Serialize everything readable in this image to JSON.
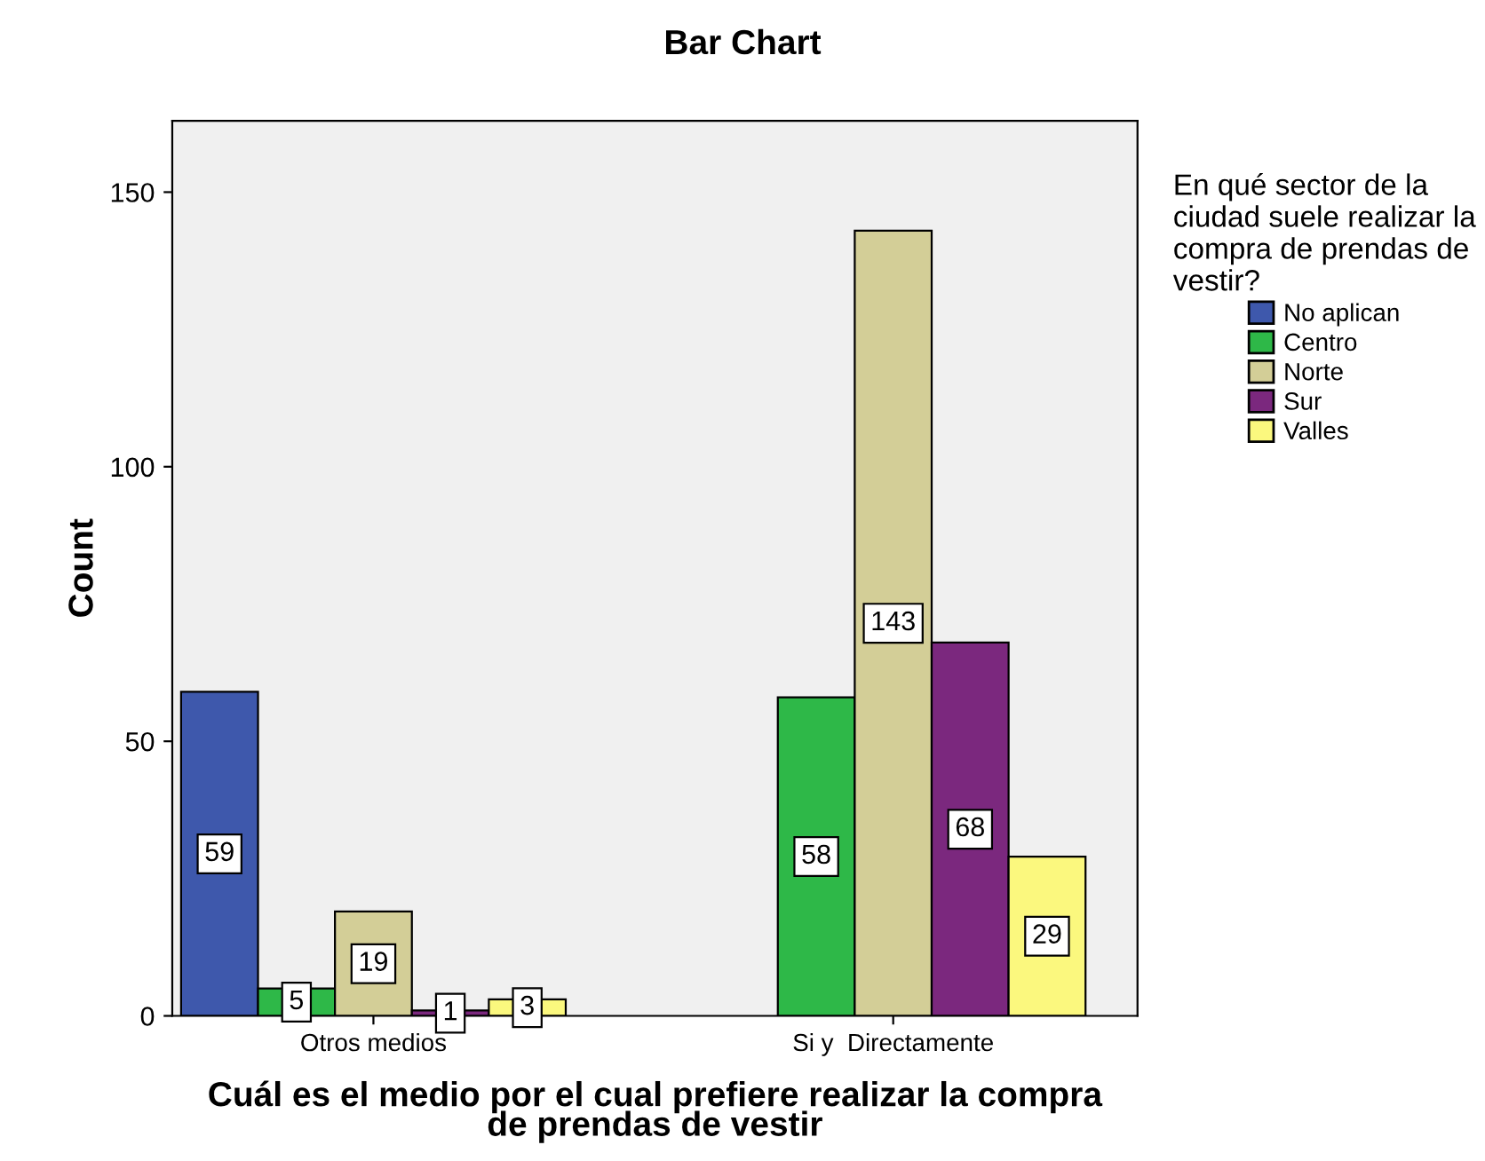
{
  "chart_data": {
    "type": "bar",
    "title": "Bar Chart",
    "xlabel": "Cuál es el medio por el cual prefiere realizar la compra\nde prendas de vestir",
    "ylabel": "Count",
    "legend_title": "En qué sector de la\nciudad suele realizar la\ncompra de prendas de\nvestir?",
    "categories": [
      "Otros medios",
      "Si y  Directamente"
    ],
    "series": [
      {
        "name": "No aplican",
        "color": "#3e58ac",
        "values": [
          59,
          null
        ]
      },
      {
        "name": "Centro",
        "color": "#2eb848",
        "values": [
          5,
          58
        ]
      },
      {
        "name": "Norte",
        "color": "#d3ce97",
        "values": [
          19,
          143
        ]
      },
      {
        "name": "Sur",
        "color": "#7b287e",
        "values": [
          1,
          68
        ]
      },
      {
        "name": "Valles",
        "color": "#fbf87e",
        "values": [
          3,
          29
        ]
      }
    ],
    "ylim": [
      0,
      163
    ],
    "yticks": [
      0,
      50,
      100,
      150
    ],
    "grid": false,
    "legend": "right",
    "data_labels": true
  }
}
